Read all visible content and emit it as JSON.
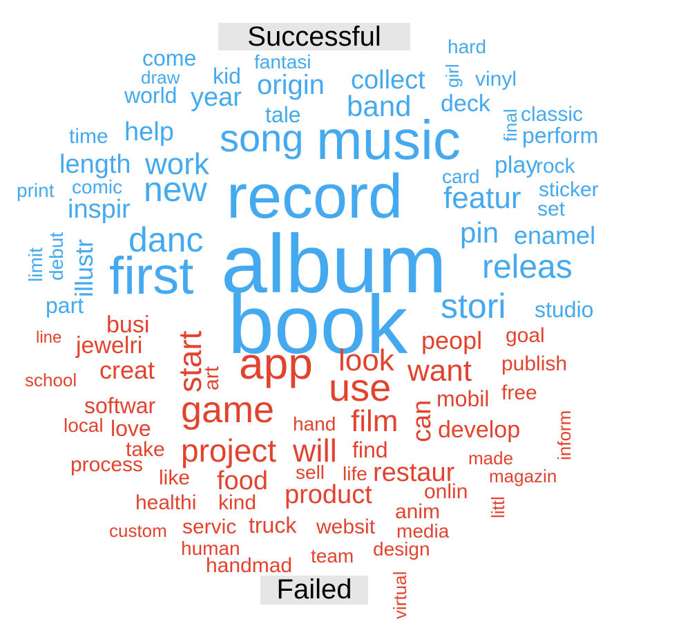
{
  "groups": {
    "successful": {
      "label": "Successful",
      "color": "#45a9f0"
    },
    "failed": {
      "label": "Failed",
      "color": "#e2432f"
    }
  },
  "words": {
    "successful": [
      "album",
      "book",
      "record",
      "music",
      "first",
      "song",
      "new",
      "releas",
      "stori",
      "danc",
      "featur",
      "origin",
      "collect",
      "band",
      "year",
      "work",
      "help",
      "pin",
      "enamel",
      "studio",
      "come",
      "kid",
      "fantasi",
      "world",
      "draw",
      "tale",
      "deck",
      "vinyl",
      "final",
      "classic",
      "perform",
      "play",
      "rock",
      "card",
      "sticker",
      "set",
      "inspir",
      "comic",
      "print",
      "length",
      "time",
      "illustr",
      "limit",
      "debut",
      "part",
      "hard",
      "girl"
    ],
    "failed": [
      "app",
      "use",
      "game",
      "start",
      "look",
      "want",
      "project",
      "will",
      "film",
      "can",
      "peopl",
      "busi",
      "jewelri",
      "creat",
      "art",
      "softwar",
      "goal",
      "publish",
      "free",
      "mobil",
      "develop",
      "food",
      "restaur",
      "product",
      "hand",
      "love",
      "take",
      "find",
      "sell",
      "life",
      "made",
      "magazin",
      "inform",
      "local",
      "process",
      "like",
      "healthi",
      "kind",
      "onlin",
      "littl",
      "anim",
      "websit",
      "media",
      "truck",
      "servic",
      "custom",
      "human",
      "team",
      "design",
      "handmad",
      "virtual",
      "line",
      "school"
    ]
  }
}
